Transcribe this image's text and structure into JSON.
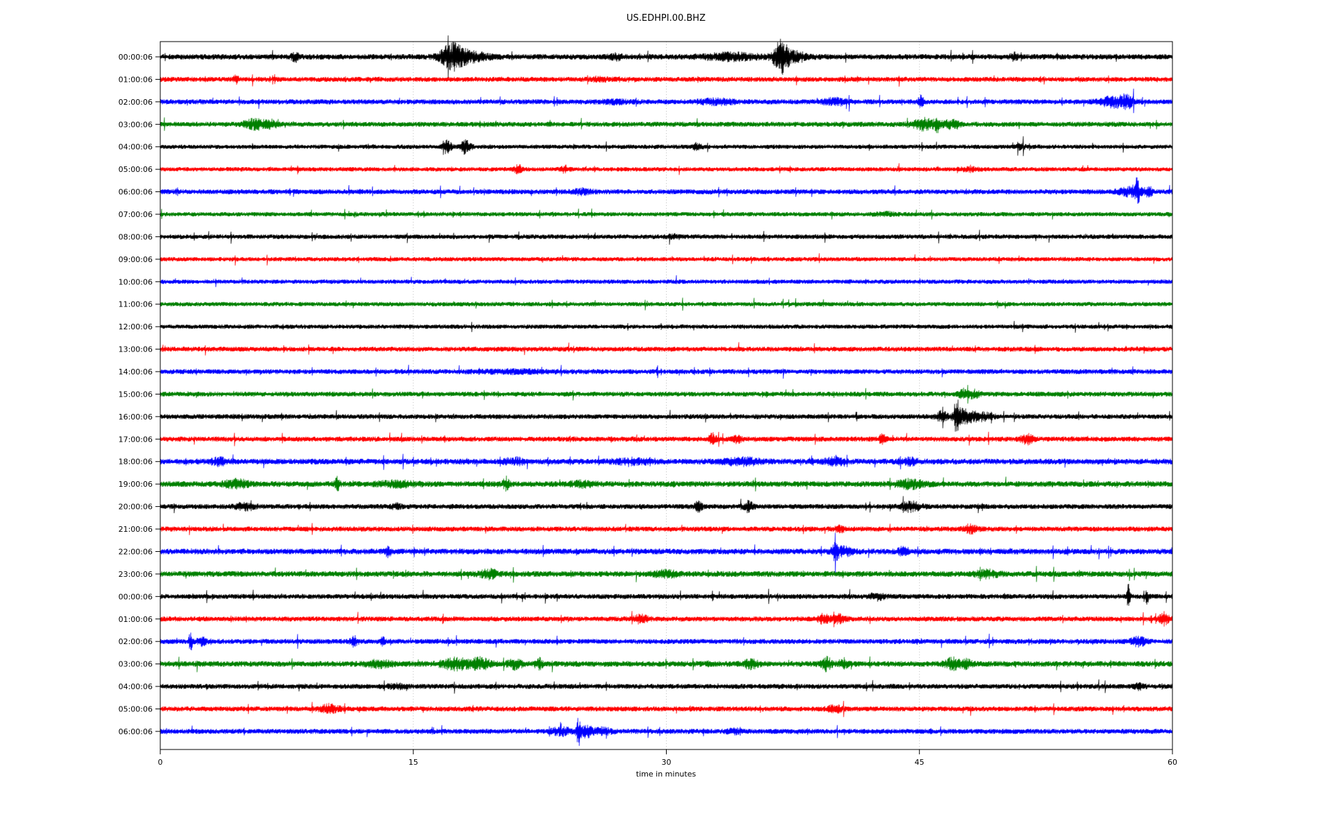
{
  "chart_data": {
    "type": "line",
    "subtype": "helicorder-dayplot",
    "title": "US.EDHPI.00.BHZ",
    "xlabel": "time in minutes",
    "x_range": [
      0,
      60
    ],
    "x_ticks": [
      0,
      15,
      30,
      45,
      60
    ],
    "grid_minutes": [
      15,
      30,
      45
    ],
    "grid_style": "dotted-vertical",
    "legend": "none",
    "color_cycle": [
      "#000000",
      "#ff0000",
      "#0000ff",
      "#008000"
    ],
    "grid_color": "#b3b3b3",
    "rows": [
      {
        "label": "00:00:06",
        "color": "#000000",
        "base_amp": 3.8,
        "events": [
          {
            "t": 8.0,
            "a": 5,
            "w": 0.15
          },
          {
            "t": 17.3,
            "a": 16,
            "w": 0.45
          },
          {
            "t": 18.3,
            "a": 6,
            "w": 0.8
          },
          {
            "t": 27.0,
            "a": 3,
            "w": 0.3
          },
          {
            "t": 33.8,
            "a": 4,
            "w": 1.2
          },
          {
            "t": 36.8,
            "a": 20,
            "w": 0.3
          },
          {
            "t": 37.6,
            "a": 6,
            "w": 0.6
          },
          {
            "t": 50.6,
            "a": 4,
            "w": 0.15
          }
        ]
      },
      {
        "label": "01:00:06",
        "color": "#ff0000",
        "base_amp": 3.5,
        "events": [
          {
            "t": 4.5,
            "a": 5,
            "w": 0.1
          },
          {
            "t": 26.0,
            "a": 2,
            "w": 0.4
          }
        ]
      },
      {
        "label": "02:00:06",
        "color": "#0000ff",
        "base_amp": 3.5,
        "events": [
          {
            "t": 27.0,
            "a": 2,
            "w": 0.6
          },
          {
            "t": 33.0,
            "a": 3,
            "w": 0.8
          },
          {
            "t": 40.0,
            "a": 4,
            "w": 0.5
          },
          {
            "t": 45.1,
            "a": 10,
            "w": 0.1
          },
          {
            "t": 56.5,
            "a": 6,
            "w": 0.6
          },
          {
            "t": 57.3,
            "a": 6,
            "w": 0.3
          }
        ]
      },
      {
        "label": "03:00:06",
        "color": "#008000",
        "base_amp": 3.5,
        "events": [
          {
            "t": 5.5,
            "a": 6,
            "w": 0.4
          },
          {
            "t": 6.5,
            "a": 5,
            "w": 0.3
          },
          {
            "t": 45.3,
            "a": 7,
            "w": 0.5
          },
          {
            "t": 46.1,
            "a": 9,
            "w": 0.12
          },
          {
            "t": 46.9,
            "a": 5,
            "w": 0.3
          }
        ]
      },
      {
        "label": "04:00:06",
        "color": "#000000",
        "base_amp": 3.0,
        "events": [
          {
            "t": 17.0,
            "a": 9,
            "w": 0.18
          },
          {
            "t": 18.1,
            "a": 8,
            "w": 0.22
          },
          {
            "t": 31.8,
            "a": 4,
            "w": 0.2
          },
          {
            "t": 51.0,
            "a": 3,
            "w": 0.2
          }
        ]
      },
      {
        "label": "05:00:06",
        "color": "#ff0000",
        "base_amp": 3.0,
        "events": [
          {
            "t": 21.2,
            "a": 6,
            "w": 0.15
          },
          {
            "t": 24.0,
            "a": 4,
            "w": 0.2
          },
          {
            "t": 48.0,
            "a": 2,
            "w": 0.4
          }
        ]
      },
      {
        "label": "06:00:06",
        "color": "#0000ff",
        "base_amp": 3.5,
        "events": [
          {
            "t": 25.0,
            "a": 3,
            "w": 0.4
          },
          {
            "t": 57.5,
            "a": 5,
            "w": 0.5
          },
          {
            "t": 57.9,
            "a": 16,
            "w": 0.12
          },
          {
            "t": 58.6,
            "a": 5,
            "w": 0.2
          }
        ]
      },
      {
        "label": "07:00:06",
        "color": "#008000",
        "base_amp": 3.0,
        "events": [
          {
            "t": 43.0,
            "a": 2,
            "w": 0.4
          }
        ]
      },
      {
        "label": "08:00:06",
        "color": "#000000",
        "base_amp": 3.2,
        "events": [
          {
            "t": 30.5,
            "a": 2,
            "w": 0.3
          }
        ]
      },
      {
        "label": "09:00:06",
        "color": "#ff0000",
        "base_amp": 3.0,
        "events": []
      },
      {
        "label": "10:00:06",
        "color": "#0000ff",
        "base_amp": 3.0,
        "events": []
      },
      {
        "label": "11:00:06",
        "color": "#008000",
        "base_amp": 3.0,
        "events": []
      },
      {
        "label": "12:00:06",
        "color": "#000000",
        "base_amp": 3.0,
        "events": []
      },
      {
        "label": "13:00:06",
        "color": "#ff0000",
        "base_amp": 3.4,
        "events": []
      },
      {
        "label": "14:00:06",
        "color": "#0000ff",
        "base_amp": 3.4,
        "events": [
          {
            "t": 21.0,
            "a": 1.5,
            "w": 2.0
          }
        ]
      },
      {
        "label": "15:00:06",
        "color": "#008000",
        "base_amp": 3.4,
        "events": [
          {
            "t": 47.7,
            "a": 6,
            "w": 0.25
          },
          {
            "t": 48.3,
            "a": 4,
            "w": 0.2
          }
        ]
      },
      {
        "label": "16:00:06",
        "color": "#000000",
        "base_amp": 3.4,
        "events": [
          {
            "t": 46.3,
            "a": 6,
            "w": 0.25
          },
          {
            "t": 47.2,
            "a": 20,
            "w": 0.12
          },
          {
            "t": 47.6,
            "a": 9,
            "w": 0.35
          },
          {
            "t": 48.6,
            "a": 5,
            "w": 0.5
          }
        ]
      },
      {
        "label": "17:00:06",
        "color": "#ff0000",
        "base_amp": 3.5,
        "events": [
          {
            "t": 32.7,
            "a": 7,
            "w": 0.18
          },
          {
            "t": 34.2,
            "a": 5,
            "w": 0.15
          },
          {
            "t": 42.8,
            "a": 5,
            "w": 0.15
          },
          {
            "t": 51.4,
            "a": 6,
            "w": 0.25
          }
        ]
      },
      {
        "label": "18:00:06",
        "color": "#0000ff",
        "base_amp": 4.0,
        "events": [
          {
            "t": 3.5,
            "a": 5,
            "w": 0.3
          },
          {
            "t": 21.0,
            "a": 4,
            "w": 0.4
          },
          {
            "t": 28.0,
            "a": 3,
            "w": 0.8
          },
          {
            "t": 34.5,
            "a": 4,
            "w": 0.8
          },
          {
            "t": 38.6,
            "a": 5,
            "w": 0.1
          },
          {
            "t": 40.0,
            "a": 4,
            "w": 0.4
          },
          {
            "t": 44.5,
            "a": 4,
            "w": 0.3
          }
        ]
      },
      {
        "label": "19:00:06",
        "color": "#008000",
        "base_amp": 4.0,
        "events": [
          {
            "t": 4.5,
            "a": 5,
            "w": 0.5
          },
          {
            "t": 10.5,
            "a": 8,
            "w": 0.1
          },
          {
            "t": 14.0,
            "a": 3,
            "w": 0.8
          },
          {
            "t": 20.5,
            "a": 8,
            "w": 0.12
          },
          {
            "t": 25.0,
            "a": 3,
            "w": 0.5
          },
          {
            "t": 44.5,
            "a": 5,
            "w": 0.6
          }
        ]
      },
      {
        "label": "20:00:06",
        "color": "#000000",
        "base_amp": 3.5,
        "events": [
          {
            "t": 5.0,
            "a": 4,
            "w": 0.4
          },
          {
            "t": 14.0,
            "a": 3,
            "w": 0.2
          },
          {
            "t": 31.9,
            "a": 6,
            "w": 0.15
          },
          {
            "t": 34.9,
            "a": 7,
            "w": 0.2
          },
          {
            "t": 44.5,
            "a": 6,
            "w": 0.4
          }
        ]
      },
      {
        "label": "21:00:06",
        "color": "#ff0000",
        "base_amp": 3.5,
        "events": [
          {
            "t": 40.3,
            "a": 4,
            "w": 0.2
          },
          {
            "t": 48.0,
            "a": 5,
            "w": 0.3
          }
        ]
      },
      {
        "label": "22:00:06",
        "color": "#0000ff",
        "base_amp": 4.0,
        "events": [
          {
            "t": 13.5,
            "a": 6,
            "w": 0.12
          },
          {
            "t": 40.0,
            "a": 9,
            "w": 0.15
          },
          {
            "t": 40.5,
            "a": 5,
            "w": 0.4
          },
          {
            "t": 44.0,
            "a": 5,
            "w": 0.2
          }
        ]
      },
      {
        "label": "23:00:06",
        "color": "#008000",
        "base_amp": 4.0,
        "events": [
          {
            "t": 19.5,
            "a": 5,
            "w": 0.4
          },
          {
            "t": 30.0,
            "a": 4,
            "w": 0.5
          },
          {
            "t": 49.0,
            "a": 4,
            "w": 0.5
          }
        ]
      },
      {
        "label": "00:00:06",
        "color": "#000000",
        "base_amp": 3.5,
        "events": [
          {
            "t": 42.5,
            "a": 4,
            "w": 0.3
          },
          {
            "t": 57.4,
            "a": 16,
            "w": 0.07
          },
          {
            "t": 58.5,
            "a": 9,
            "w": 0.07
          }
        ]
      },
      {
        "label": "01:00:06",
        "color": "#ff0000",
        "base_amp": 3.5,
        "events": [
          {
            "t": 28.5,
            "a": 5,
            "w": 0.3
          },
          {
            "t": 39.3,
            "a": 7,
            "w": 0.2
          },
          {
            "t": 40.2,
            "a": 5,
            "w": 0.3
          },
          {
            "t": 59.5,
            "a": 7,
            "w": 0.2
          }
        ]
      },
      {
        "label": "02:00:06",
        "color": "#0000ff",
        "base_amp": 3.5,
        "events": [
          {
            "t": 1.8,
            "a": 12,
            "w": 0.07
          },
          {
            "t": 2.5,
            "a": 5,
            "w": 0.2
          },
          {
            "t": 11.5,
            "a": 6,
            "w": 0.15
          },
          {
            "t": 13.2,
            "a": 5,
            "w": 0.1
          },
          {
            "t": 58.0,
            "a": 6,
            "w": 0.3
          }
        ]
      },
      {
        "label": "03:00:06",
        "color": "#008000",
        "base_amp": 4.0,
        "events": [
          {
            "t": 13.0,
            "a": 4,
            "w": 0.5
          },
          {
            "t": 17.5,
            "a": 7,
            "w": 0.6
          },
          {
            "t": 19.0,
            "a": 7,
            "w": 0.4
          },
          {
            "t": 21.0,
            "a": 6,
            "w": 0.3
          },
          {
            "t": 22.5,
            "a": 6,
            "w": 0.12
          },
          {
            "t": 35.0,
            "a": 5,
            "w": 0.3
          },
          {
            "t": 39.5,
            "a": 8,
            "w": 0.2
          },
          {
            "t": 40.5,
            "a": 6,
            "w": 0.2
          },
          {
            "t": 47.0,
            "a": 7,
            "w": 0.3
          },
          {
            "t": 47.8,
            "a": 5,
            "w": 0.2
          }
        ]
      },
      {
        "label": "04:00:06",
        "color": "#000000",
        "base_amp": 3.5,
        "events": [
          {
            "t": 14.0,
            "a": 2,
            "w": 0.5
          },
          {
            "t": 58.0,
            "a": 3,
            "w": 0.2
          }
        ]
      },
      {
        "label": "05:00:06",
        "color": "#ff0000",
        "base_amp": 3.5,
        "events": [
          {
            "t": 10.0,
            "a": 5,
            "w": 0.4
          },
          {
            "t": 40.0,
            "a": 4,
            "w": 0.3
          }
        ]
      },
      {
        "label": "06:00:06",
        "color": "#0000ff",
        "base_amp": 3.5,
        "events": [
          {
            "t": 23.8,
            "a": 5,
            "w": 0.4
          },
          {
            "t": 24.8,
            "a": 18,
            "w": 0.1
          },
          {
            "t": 25.3,
            "a": 8,
            "w": 0.2
          },
          {
            "t": 26.2,
            "a": 4,
            "w": 0.4
          },
          {
            "t": 34.0,
            "a": 3,
            "w": 0.3
          }
        ]
      }
    ]
  }
}
